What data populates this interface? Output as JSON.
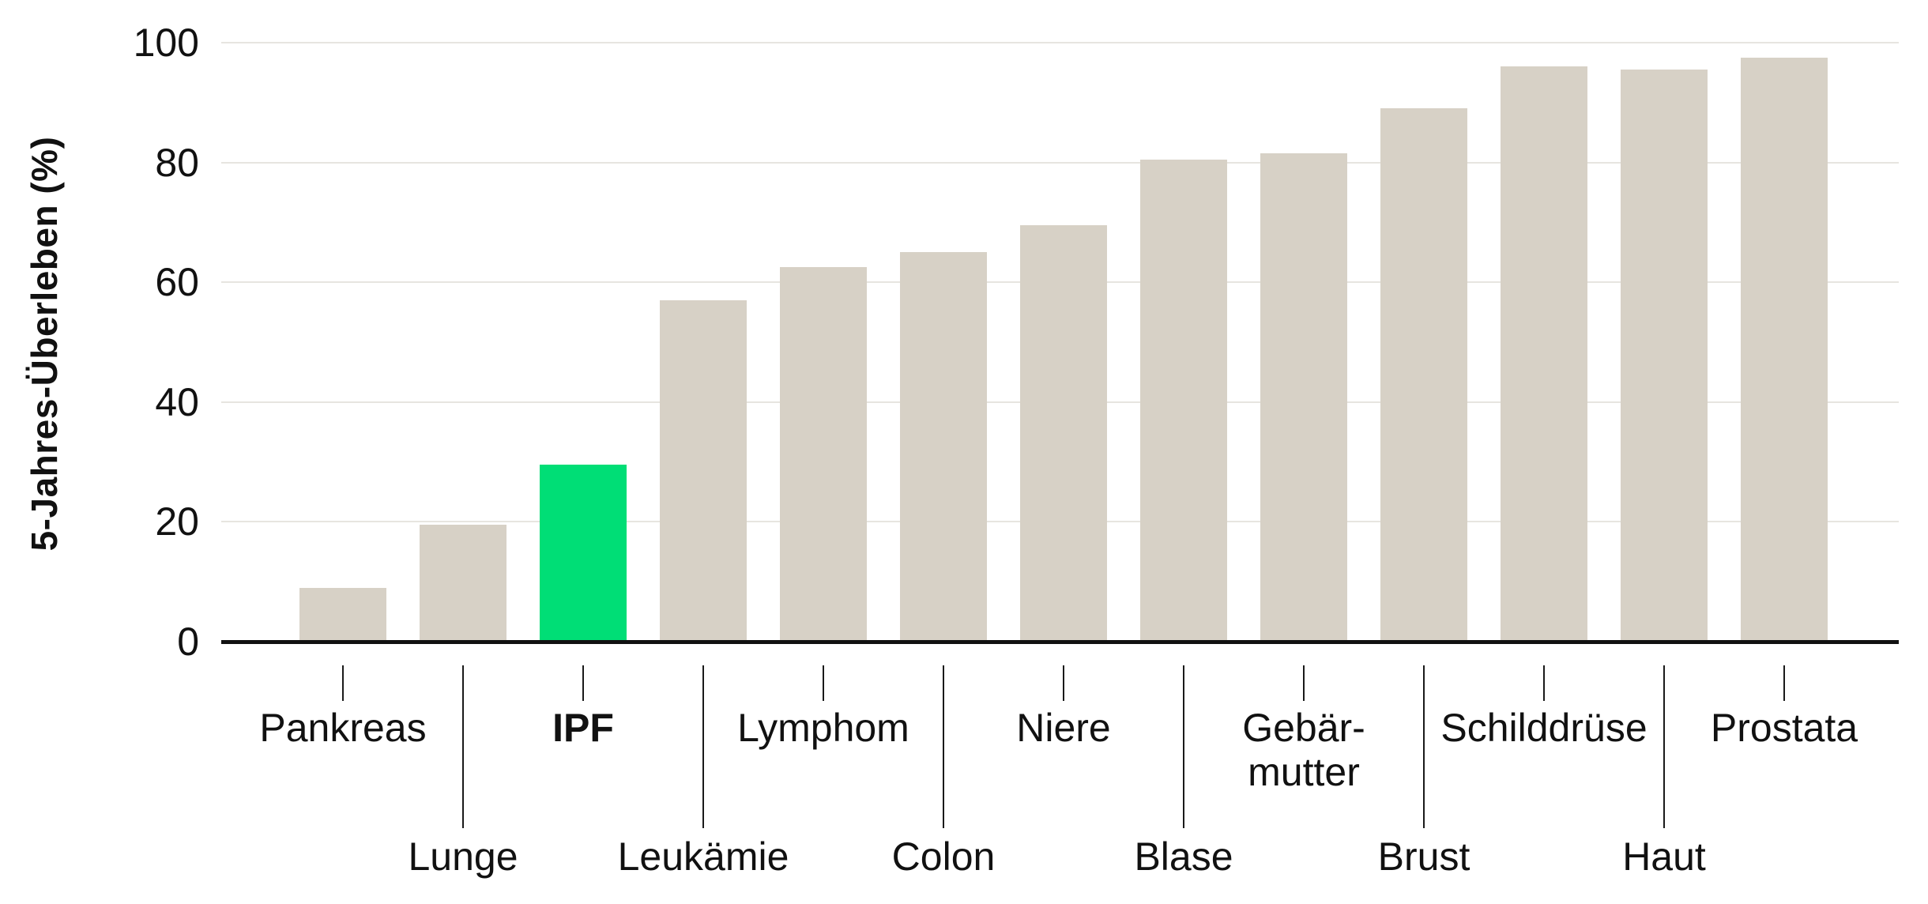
{
  "chart_data": {
    "type": "bar",
    "ylabel": "5-Jahres-Überleben (%)",
    "ylim": [
      0,
      100
    ],
    "yticks": [
      0,
      20,
      40,
      60,
      80,
      100
    ],
    "grid": "horizontal",
    "legend": "none",
    "categories": [
      "Pankreas",
      "Lunge",
      "IPF",
      "Leukämie",
      "Lymphom",
      "Colon",
      "Niere",
      "Blase",
      "Gebärmutter",
      "Brust",
      "Schilddrüse",
      "Haut",
      "Prostata"
    ],
    "values": [
      9,
      19.5,
      29.5,
      57,
      62.5,
      65,
      69.5,
      80.5,
      81.5,
      89,
      96,
      95.5,
      97.5
    ],
    "label_lines": [
      [
        "Pankreas"
      ],
      [
        "Lunge"
      ],
      [
        "IPF"
      ],
      [
        "Leukämie"
      ],
      [
        "Lymphom"
      ],
      [
        "Colon"
      ],
      [
        "Niere"
      ],
      [
        "Blase"
      ],
      [
        "Gebär-",
        "mutter"
      ],
      [
        "Brust"
      ],
      [
        "Schilddrüse"
      ],
      [
        "Haut"
      ],
      [
        "Prostata"
      ]
    ],
    "label_rows": [
      "upper",
      "lower",
      "upper",
      "lower",
      "upper",
      "lower",
      "upper",
      "lower",
      "upper",
      "lower",
      "upper",
      "lower",
      "upper"
    ],
    "emphasized_index": 2,
    "highlighted_category": "IPF",
    "bar_color": "#D7D1C6",
    "highlight_color": "#00DE76",
    "gridline_color": "#E7E5E0",
    "axis_color": "#111111",
    "tick_line_color": "#1A1A1A",
    "text_color": "#111111"
  }
}
